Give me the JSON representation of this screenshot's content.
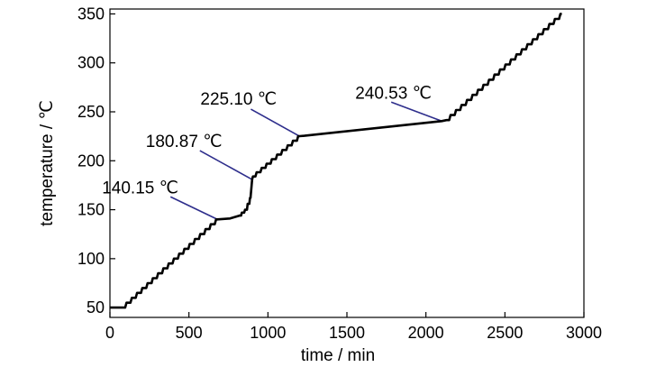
{
  "chart_data": {
    "type": "line",
    "title": "",
    "xlabel": "time / min",
    "ylabel": "temperature / ℃",
    "xlim": [
      0,
      3000
    ],
    "ylim": [
      40,
      355
    ],
    "xticks": [
      0,
      500,
      1000,
      1500,
      2000,
      2500,
      3000
    ],
    "yticks": [
      50,
      100,
      150,
      200,
      250,
      300,
      350
    ],
    "grid": false,
    "legend": "none",
    "line_color": "#000000",
    "annotation_color": "#2e2e8c",
    "series": [
      {
        "x": [
          0,
          80,
          680,
          760,
          820,
          860,
          890,
          900,
          905,
          1000,
          1100,
          1200,
          1230,
          2100,
          2130,
          2860
        ],
        "y": [
          50,
          50,
          140.15,
          141,
          144,
          150,
          162,
          180.87,
          184,
          197,
          211,
          225.1,
          225.5,
          240.53,
          241.5,
          350
        ]
      }
    ],
    "annotations": [
      {
        "text": "140.15 ℃",
        "x": 680,
        "y": 140.15
      },
      {
        "text": "180.87 ℃",
        "x": 900,
        "y": 180.87
      },
      {
        "text": "225.10 ℃",
        "x": 1200,
        "y": 225.1
      },
      {
        "text": "240.53 ℃",
        "x": 2100,
        "y": 240.53
      }
    ]
  }
}
